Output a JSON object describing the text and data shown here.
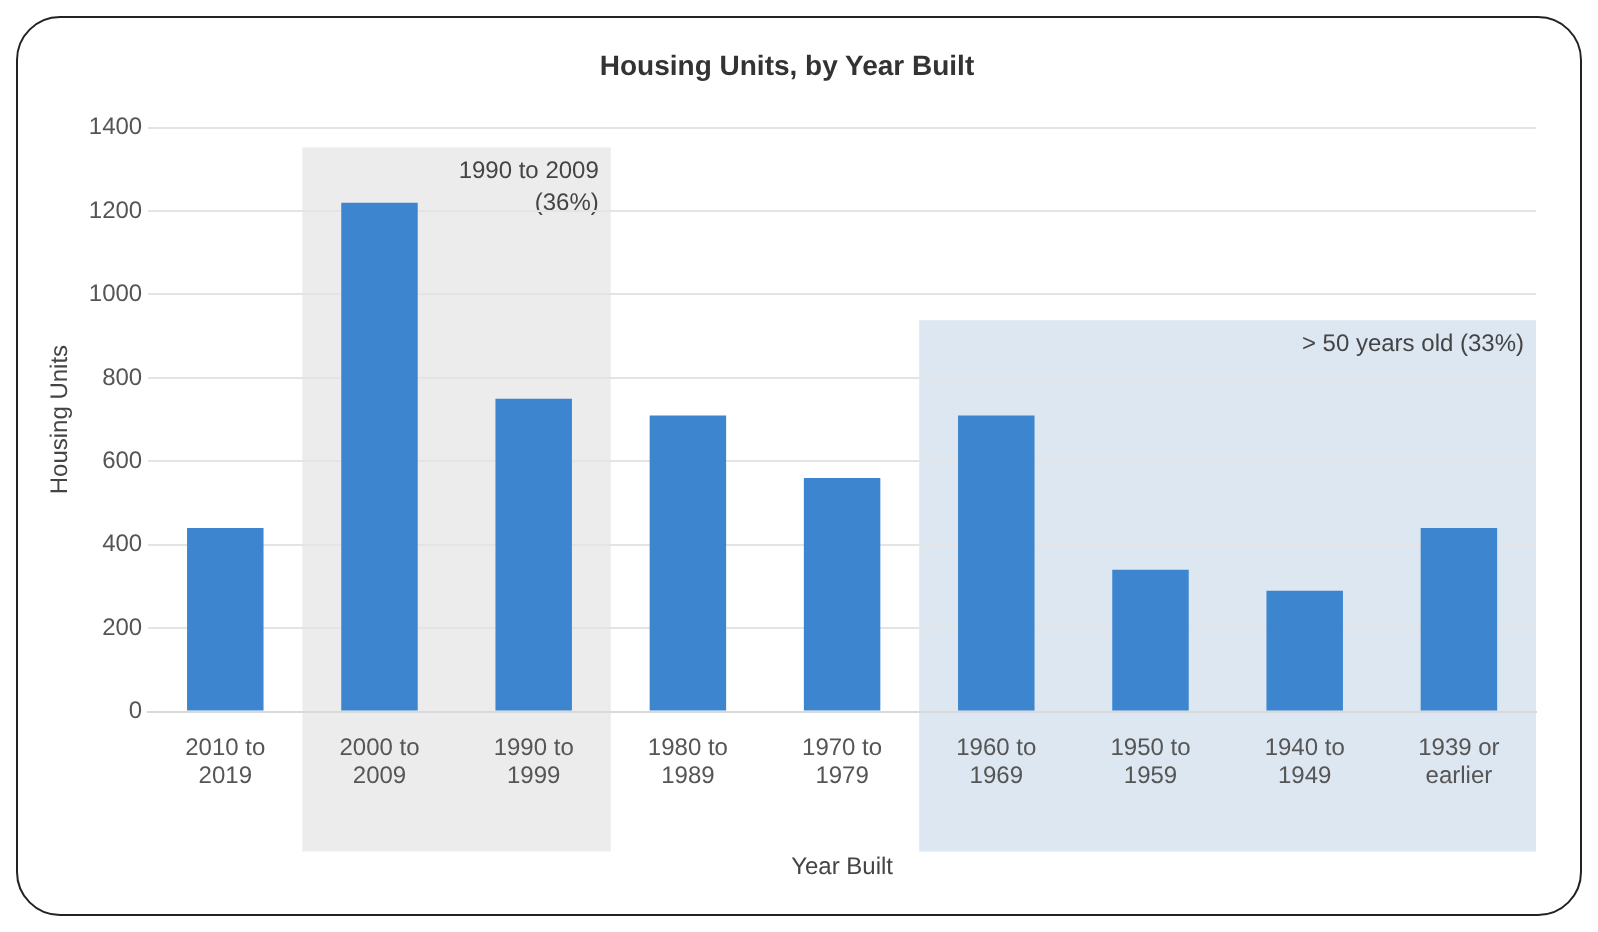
{
  "chart_data": {
    "type": "bar",
    "title": "Housing Units, by Year Built",
    "xlabel": "Year Built",
    "ylabel": "Housing Units",
    "categories": [
      "2010 to 2019",
      "2000 to 2009",
      "1990 to 1999",
      "1980 to 1989",
      "1970 to 1979",
      "1960 to 1969",
      "1950 to 1959",
      "1940 to 1949",
      "1939 or earlier"
    ],
    "values": [
      440,
      1220,
      750,
      710,
      560,
      710,
      340,
      290,
      440
    ],
    "color": "#3d85cf",
    "ylim": [
      0,
      1400
    ],
    "yticks": [
      0,
      200,
      400,
      600,
      800,
      1000,
      1200,
      1400
    ],
    "grid": "y",
    "legend": false,
    "bands": [
      {
        "axis": "x",
        "from": "2000 to 2009",
        "to": "1990 to 1999",
        "label": "1990 to 2009 (36%)",
        "color": "#ececec"
      },
      {
        "axis": "x",
        "from": "1960 to 1969",
        "to": "1939 or earlier",
        "label": "> 50 years old (33%)",
        "color": "#dde7f1"
      }
    ]
  }
}
